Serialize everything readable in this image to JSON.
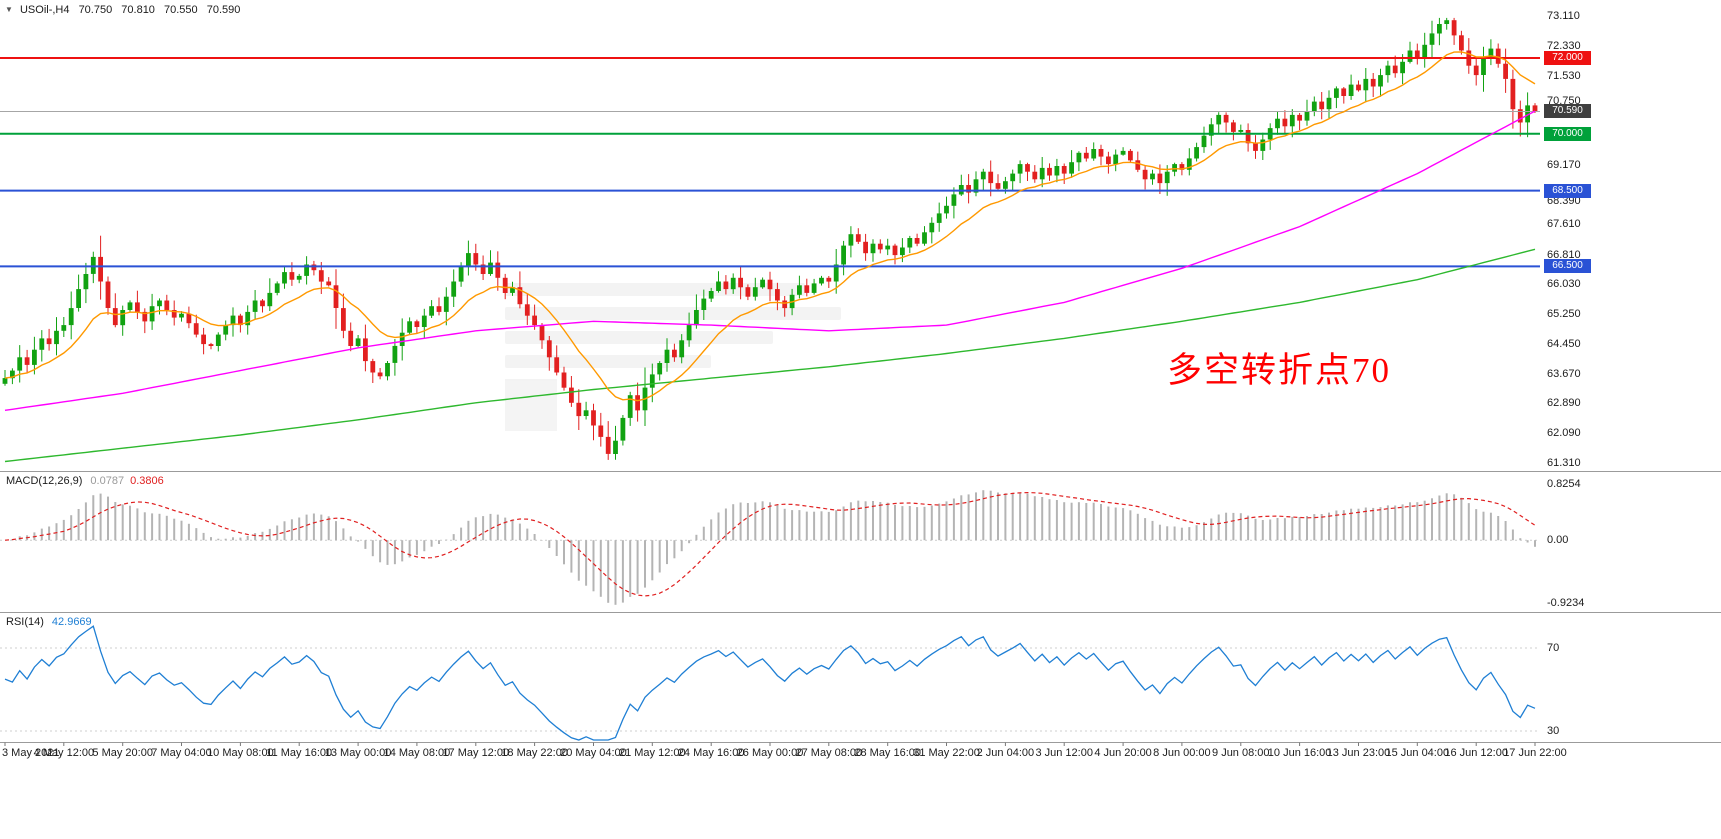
{
  "header": {
    "symbol": "USOil-,H4",
    "open": "70.750",
    "high": "70.810",
    "low": "70.550",
    "close": "70.590"
  },
  "annotation": {
    "text": "多空转折点70",
    "color": "#ff0000"
  },
  "price_axis": {
    "ticks": [
      "73.110",
      "72.330",
      "71.530",
      "70.750",
      "69.170",
      "68.390",
      "67.610",
      "66.810",
      "66.030",
      "65.250",
      "64.450",
      "63.670",
      "62.890",
      "62.090",
      "61.310"
    ],
    "badges": [
      {
        "label": "72.000",
        "value": 72.0,
        "bg": "#ee1111"
      },
      {
        "label": "70.590",
        "value": 70.59,
        "bg": "#3f3f3f"
      },
      {
        "label": "70.000",
        "value": 70.0,
        "bg": "#00a13a"
      },
      {
        "label": "68.500",
        "value": 68.5,
        "bg": "#2a52d5"
      },
      {
        "label": "66.500",
        "value": 66.5,
        "bg": "#2a52d5"
      }
    ]
  },
  "hlines": [
    {
      "value": 72.0,
      "color": "#ee1111",
      "width": 2
    },
    {
      "value": 70.0,
      "color": "#00a13a",
      "width": 2
    },
    {
      "value": 68.5,
      "color": "#2a52d5",
      "width": 2
    },
    {
      "value": 66.5,
      "color": "#2a52d5",
      "width": 2
    },
    {
      "value": 70.59,
      "color": "#a6a6a6",
      "width": 1
    }
  ],
  "macd_panel": {
    "label": "MACD(12,26,9)",
    "value_main": "0.0787",
    "value_signal": "0.3806",
    "axis_ticks": [
      "0.8254",
      "0.00",
      "-0.9234"
    ],
    "axis_values": [
      0.8254,
      0,
      -0.9234
    ],
    "histogram_color": "#b4b4b4",
    "signal_color": "#e02020"
  },
  "rsi_panel": {
    "label": "RSI(14)",
    "value": "42.9669",
    "axis_ticks": [
      "70",
      "30"
    ],
    "axis_values": [
      70,
      30
    ],
    "line_color": "#1f7fd4"
  },
  "chart_data": {
    "type": "candlestick",
    "title": "USOil-,H4",
    "timeframe": "H4",
    "ylim": [
      61.31,
      73.11
    ],
    "x_labels": [
      "3 May 2021",
      "4 May 12:00",
      "5 May 20:00",
      "7 May 04:00",
      "10 May 08:00",
      "11 May 16:00",
      "13 May 00:00",
      "14 May 08:00",
      "17 May 12:00",
      "18 May 22:00",
      "20 May 04:00",
      "21 May 12:00",
      "24 May 16:00",
      "26 May 00:00",
      "27 May 08:00",
      "28 May 16:00",
      "31 May 22:00",
      "2 Jun 04:00",
      "3 Jun 12:00",
      "4 Jun 20:00",
      "8 Jun 00:00",
      "9 Jun 08:00",
      "10 Jun 16:00",
      "13 Jun 23:00",
      "15 Jun 04:00",
      "16 Jun 12:00",
      "17 Jun 22:00"
    ],
    "first_open": 63.4,
    "closes": [
      63.55,
      63.75,
      64.1,
      63.9,
      64.3,
      64.6,
      64.45,
      64.8,
      64.95,
      65.4,
      65.9,
      66.3,
      66.75,
      66.1,
      65.4,
      64.95,
      65.35,
      65.55,
      65.3,
      65.05,
      65.45,
      65.6,
      65.35,
      65.15,
      65.25,
      65.0,
      64.7,
      64.45,
      64.4,
      64.7,
      64.95,
      65.2,
      64.95,
      65.3,
      65.6,
      65.45,
      65.8,
      66.05,
      66.35,
      66.15,
      66.25,
      66.55,
      66.4,
      66.1,
      66.0,
      65.4,
      64.8,
      64.4,
      64.6,
      64.0,
      63.7,
      63.6,
      63.95,
      64.4,
      64.75,
      65.05,
      64.9,
      65.2,
      65.45,
      65.3,
      65.7,
      66.1,
      66.5,
      66.85,
      66.55,
      66.3,
      66.6,
      66.2,
      65.8,
      65.95,
      65.5,
      65.2,
      64.95,
      64.55,
      64.1,
      63.7,
      63.3,
      62.9,
      62.55,
      62.7,
      62.3,
      62.0,
      61.55,
      61.9,
      62.5,
      63.1,
      62.7,
      63.3,
      63.65,
      63.95,
      64.3,
      64.1,
      64.55,
      64.95,
      65.35,
      65.65,
      65.85,
      66.1,
      65.9,
      66.2,
      65.95,
      65.7,
      65.95,
      66.15,
      65.9,
      65.6,
      65.4,
      65.75,
      66.0,
      65.8,
      66.05,
      66.2,
      66.1,
      66.55,
      67.05,
      67.35,
      67.15,
      66.85,
      67.1,
      66.95,
      67.05,
      66.8,
      67.0,
      67.25,
      67.1,
      67.4,
      67.65,
      67.9,
      68.1,
      68.4,
      68.65,
      68.45,
      68.8,
      69.0,
      68.7,
      68.55,
      68.75,
      68.95,
      69.2,
      69.0,
      68.8,
      69.1,
      68.9,
      69.15,
      68.95,
      69.25,
      69.5,
      69.35,
      69.6,
      69.4,
      69.2,
      69.45,
      69.55,
      69.3,
      69.05,
      68.8,
      68.95,
      68.7,
      69.0,
      69.2,
      69.05,
      69.35,
      69.65,
      69.95,
      70.25,
      70.5,
      70.3,
      70.05,
      70.1,
      69.75,
      69.55,
      69.85,
      70.15,
      70.4,
      70.2,
      70.5,
      70.35,
      70.6,
      70.85,
      70.65,
      70.95,
      71.2,
      71.0,
      71.3,
      71.15,
      71.45,
      71.25,
      71.55,
      71.8,
      71.6,
      71.9,
      72.2,
      72.0,
      72.35,
      72.65,
      72.9,
      73.0,
      72.6,
      72.2,
      71.8,
      71.55,
      72.0,
      72.25,
      71.85,
      71.45,
      70.65,
      70.3,
      70.75,
      70.59
    ],
    "last_bar": {
      "open": 70.75,
      "high": 70.81,
      "low": 70.55,
      "close": 70.59
    },
    "up_color": "#11a211",
    "down_color": "#e22020",
    "moving_averages": [
      {
        "name": "ma-fast",
        "color": "#ff9900",
        "method": "ema",
        "period": 13
      },
      {
        "name": "ma-mid",
        "color": "#ff00ff",
        "waypoints": [
          [
            0,
            62.7
          ],
          [
            16,
            63.15
          ],
          [
            32,
            63.75
          ],
          [
            48,
            64.35
          ],
          [
            64,
            64.8
          ],
          [
            80,
            65.05
          ],
          [
            96,
            64.95
          ],
          [
            112,
            64.8
          ],
          [
            128,
            64.95
          ],
          [
            144,
            65.55
          ],
          [
            160,
            66.45
          ],
          [
            176,
            67.55
          ],
          [
            192,
            68.95
          ],
          [
            208,
            70.6
          ]
        ]
      },
      {
        "name": "ma-slow",
        "color": "#2eb82e",
        "waypoints": [
          [
            0,
            61.35
          ],
          [
            16,
            61.7
          ],
          [
            32,
            62.05
          ],
          [
            48,
            62.45
          ],
          [
            64,
            62.9
          ],
          [
            80,
            63.25
          ],
          [
            96,
            63.55
          ],
          [
            112,
            63.85
          ],
          [
            128,
            64.2
          ],
          [
            144,
            64.6
          ],
          [
            160,
            65.05
          ],
          [
            176,
            65.55
          ],
          [
            192,
            66.15
          ],
          [
            208,
            66.95
          ]
        ]
      }
    ],
    "indicators": {
      "macd": {
        "fast": 12,
        "slow": 26,
        "signal": 9
      },
      "rsi": {
        "period": 14
      }
    },
    "macd_range": [
      -0.9234,
      0.8254
    ],
    "rsi_levels": [
      70,
      30
    ]
  }
}
